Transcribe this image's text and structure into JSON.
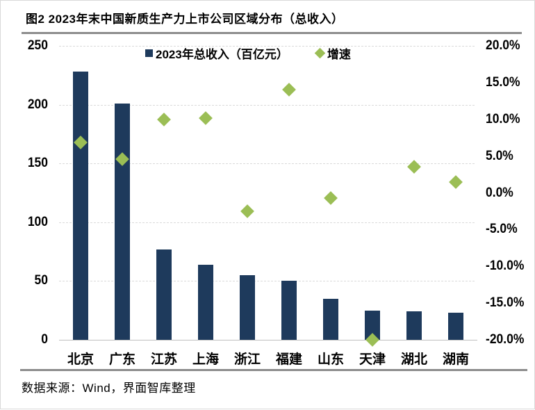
{
  "title": "图2 2023年末中国新质生产力上市公司区域分布（总收入）",
  "source_note": "数据来源：Wind，界面智库整理",
  "legend": {
    "bar_label": "2023年总收入（百亿元）",
    "diamond_label": "增速"
  },
  "colors": {
    "bar": "#1e3a5c",
    "diamond": "#9bbe55",
    "gridline": "#d9d9d9",
    "axis_line": "#bfbfbf",
    "rule": "#8c8c8c",
    "text": "#000000"
  },
  "chart_data": {
    "type": "bar",
    "title": "图2 2023年末中国新质生产力上市公司区域分布（总收入）",
    "categories": [
      "北京",
      "广东",
      "江苏",
      "上海",
      "浙江",
      "福建",
      "山东",
      "天津",
      "湖北",
      "湖南"
    ],
    "series": [
      {
        "name": "2023年总收入（百亿元）",
        "type": "bar",
        "axis": "left",
        "values": [
          228,
          201,
          77,
          64,
          55,
          50,
          35,
          25,
          24,
          23
        ]
      },
      {
        "name": "增速",
        "type": "scatter-diamond",
        "axis": "right",
        "values_pct": [
          6.9,
          4.6,
          10.0,
          10.2,
          -2.5,
          14.0,
          -0.7,
          -20.0,
          3.5,
          1.5
        ]
      }
    ],
    "left_axis": {
      "min": 0,
      "max": 250,
      "tick_labels": [
        "250",
        "200",
        "150",
        "100",
        "50",
        "0"
      ]
    },
    "right_axis": {
      "min": -20,
      "max": 20,
      "tick_labels": [
        "20.0%",
        "15.0%",
        "10.0%",
        "5.0%",
        "0.0%",
        "-5.0%",
        "-10.0%",
        "-15.0%",
        "-20.0%"
      ]
    },
    "grid": "horizontal-dashed",
    "legend_position": "top-center"
  }
}
